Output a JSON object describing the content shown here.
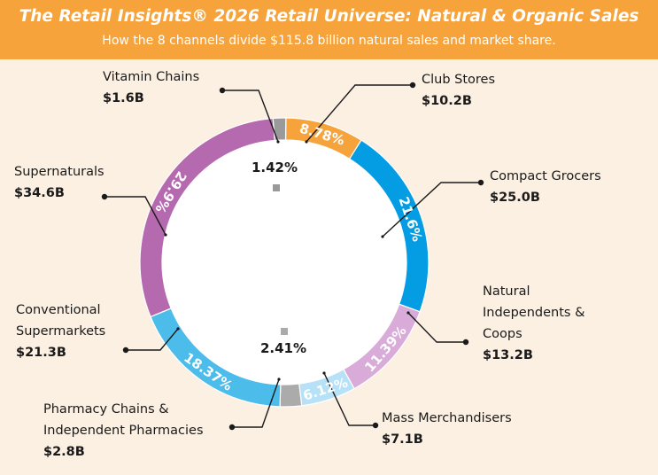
{
  "title": "The Retail Insights® 2026 Retail Universe: Natural & Organic Sales",
  "subtitle": "How the 8 channels divide $115.8 billion natural sales and market share.",
  "colors": {
    "header": "#F6A33C",
    "background": "#FCF0E3",
    "inner": "#FFFFFF",
    "leader": "#1A1A1A"
  },
  "chart_data": {
    "type": "pie",
    "donut": true,
    "unit": "%",
    "slices": [
      {
        "name": "Club Stores",
        "sales": "$10.2B",
        "share": 8.78,
        "share_label": "8.78%",
        "color": "#F6A33C"
      },
      {
        "name": "Compact Grocers",
        "sales": "$25.0B",
        "share": 21.6,
        "share_label": "21.6%",
        "color": "#049DE3"
      },
      {
        "name": "Natural Independents & Coops",
        "sales": "$13.2B",
        "share": 11.39,
        "share_label": "11.39%",
        "color": "#D9ABD9"
      },
      {
        "name": "Mass Merchandisers",
        "sales": "$7.1B",
        "share": 6.12,
        "share_label": "6.12%",
        "color": "#B6E1F6"
      },
      {
        "name": "Pharmacy Chains & Independent Pharmacies",
        "sales": "$2.8B",
        "share": 2.41,
        "share_label": "2.41%",
        "color": "#ABABAB"
      },
      {
        "name": "Conventional Supermarkets",
        "sales": "$21.3B",
        "share": 18.37,
        "share_label": "18.37%",
        "color": "#4CBCEB"
      },
      {
        "name": "Supernaturals",
        "sales": "$34.6B",
        "share": 29.9,
        "share_label": "29.9%",
        "color": "#B569AF"
      },
      {
        "name": "Vitamin Chains",
        "sales": "$1.6B",
        "share": 1.42,
        "share_label": "1.42%",
        "color": "#9A9A9A"
      }
    ]
  },
  "labels": [
    {
      "name_lines": [
        "Club Stores"
      ],
      "value": "$10.2B"
    },
    {
      "name_lines": [
        "Compact Grocers"
      ],
      "value": "$25.0B"
    },
    {
      "name_lines": [
        "Natural",
        "Independents &",
        "Coops"
      ],
      "value": "$13.2B"
    },
    {
      "name_lines": [
        "Mass Merchandisers"
      ],
      "value": "$7.1B"
    },
    {
      "name_lines": [
        "Pharmacy Chains &",
        "Independent Pharmacies"
      ],
      "value": "$2.8B"
    },
    {
      "name_lines": [
        "Conventional",
        "Supermarkets"
      ],
      "value": "$21.3B"
    },
    {
      "name_lines": [
        "Supernaturals"
      ],
      "value": "$34.6B"
    },
    {
      "name_lines": [
        "Vitamin Chains"
      ],
      "value": "$1.6B"
    }
  ]
}
